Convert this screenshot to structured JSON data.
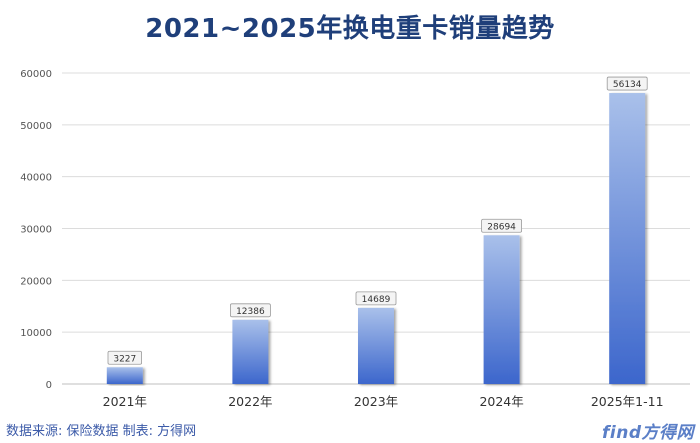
{
  "chart_data": {
    "type": "bar",
    "title": "2021~2025年换电重卡销量趋势",
    "categories": [
      "2021年",
      "2022年",
      "2023年",
      "2024年",
      "2025年1-11"
    ],
    "values": [
      3227,
      12386,
      14689,
      28694,
      56134
    ],
    "data_labels": [
      "3227",
      "12386",
      "14689",
      "28694",
      "56134"
    ],
    "ylim": [
      0,
      60000
    ],
    "yticks": [
      "0",
      "10000",
      "20000",
      "30000",
      "40000",
      "50000",
      "60000"
    ],
    "grid": true,
    "bar_color_top": "#a9c0ea",
    "bar_color_bottom": "#3c66cc"
  },
  "footer": {
    "source": "数据来源: 保险数据  制表: 方得网",
    "watermark": "find方得网"
  }
}
